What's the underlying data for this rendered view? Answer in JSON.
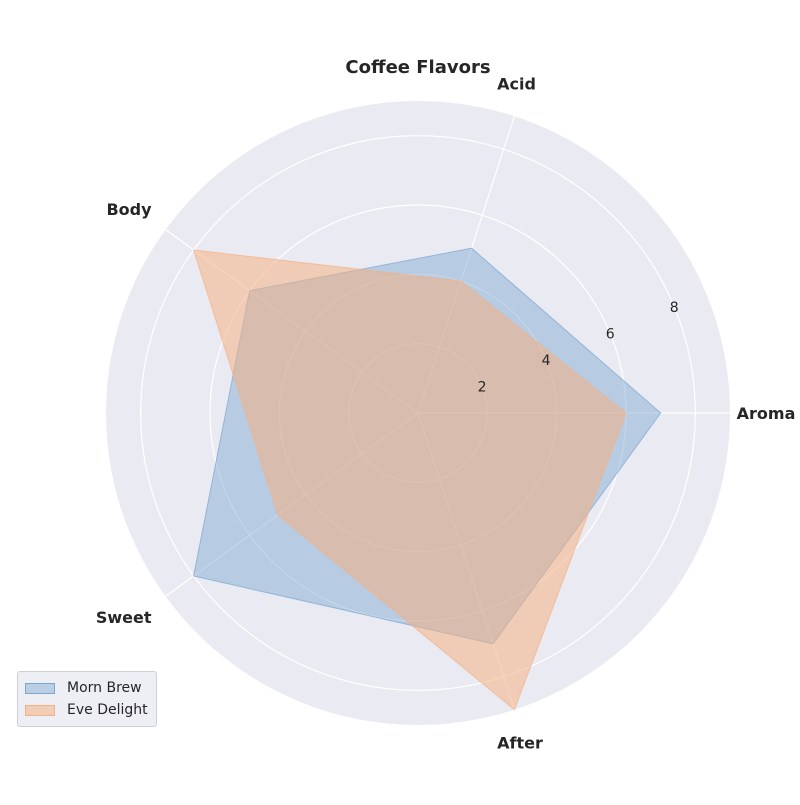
{
  "chart_data": {
    "type": "radar",
    "title": "Coffee Flavors",
    "axes": [
      "Aroma",
      "Acid",
      "Body",
      "Sweet",
      "After"
    ],
    "rlim": [
      0,
      9
    ],
    "rticks": [
      2,
      4,
      6,
      8
    ],
    "grid": true,
    "legend_position": "lower-left",
    "series": [
      {
        "name": "Morn Brew",
        "values": [
          7,
          5,
          6,
          8,
          7
        ],
        "color": "#7aa6d1"
      },
      {
        "name": "Eve Delight",
        "values": [
          6,
          4,
          8,
          5,
          9
        ],
        "color": "#f4b183"
      }
    ]
  }
}
